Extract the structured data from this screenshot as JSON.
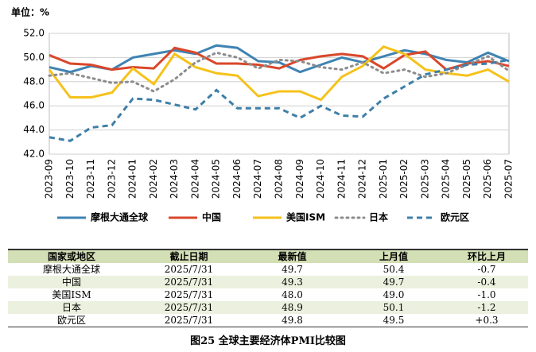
{
  "chart_data": {
    "type": "line",
    "unit_label": "单位：%",
    "categories": [
      "2023-09",
      "2023-10",
      "2023-11",
      "2023-12",
      "2024-01",
      "2024-02",
      "2024-03",
      "2024-04",
      "2024-05",
      "2024-06",
      "2024-07",
      "2024-08",
      "2024-09",
      "2024-10",
      "2024-11",
      "2024-12",
      "2025-01",
      "2025-02",
      "2025-03",
      "2025-04",
      "2025-05",
      "2025-06",
      "2025-07"
    ],
    "series": [
      {
        "name": "摩根大通全球",
        "color": "#3f83b3",
        "line_style": "solid",
        "values": [
          49.2,
          48.8,
          49.3,
          49.0,
          50.0,
          50.3,
          50.6,
          50.3,
          51.0,
          50.8,
          49.7,
          49.6,
          48.8,
          49.4,
          50.0,
          49.6,
          50.1,
          50.6,
          50.3,
          49.8,
          49.6,
          50.4,
          49.7
        ]
      },
      {
        "name": "中国",
        "color": "#d9472b",
        "line_style": "solid",
        "values": [
          50.2,
          49.5,
          49.4,
          49.0,
          49.2,
          49.1,
          50.8,
          50.4,
          49.5,
          49.5,
          49.4,
          49.1,
          49.8,
          50.1,
          50.3,
          50.1,
          49.1,
          50.2,
          50.5,
          49.0,
          49.5,
          49.7,
          49.3
        ]
      },
      {
        "name": "美国ISM",
        "color": "#f5c21b",
        "line_style": "solid",
        "values": [
          49.0,
          46.7,
          46.7,
          47.1,
          49.1,
          47.8,
          50.3,
          49.2,
          48.7,
          48.5,
          46.8,
          47.2,
          47.2,
          46.5,
          48.4,
          49.3,
          50.9,
          50.3,
          49.0,
          48.7,
          48.5,
          49.0,
          48.0
        ]
      },
      {
        "name": "日本",
        "color": "#8c8c8c",
        "line_style": "dot",
        "values": [
          48.5,
          48.7,
          48.3,
          47.9,
          48.0,
          47.2,
          48.2,
          49.6,
          50.4,
          50.0,
          49.1,
          49.8,
          49.7,
          49.2,
          49.0,
          49.6,
          48.7,
          49.0,
          48.4,
          48.7,
          49.4,
          50.1,
          48.9
        ]
      },
      {
        "name": "欧元区",
        "color": "#3e7fa8",
        "line_style": "dash",
        "values": [
          43.4,
          43.1,
          44.2,
          44.4,
          46.6,
          46.5,
          46.1,
          45.7,
          47.3,
          45.8,
          45.8,
          45.8,
          45.0,
          46.0,
          45.2,
          45.1,
          46.6,
          47.6,
          48.6,
          49.0,
          49.4,
          49.5,
          49.8
        ]
      }
    ],
    "ylim": [
      42,
      52
    ],
    "yticks": [
      {
        "value": 42,
        "label": "42.0"
      },
      {
        "value": 44,
        "label": "44.0"
      },
      {
        "value": 46,
        "label": "46.0"
      },
      {
        "value": 48,
        "label": "48.0"
      },
      {
        "value": 50,
        "label": "50.0"
      },
      {
        "value": 52,
        "label": "52.0"
      }
    ],
    "grid": true,
    "legend": "bottom"
  },
  "table": {
    "header": [
      "国家或地区",
      "截止日期",
      "最新值",
      "上月值",
      "环比上月"
    ],
    "rows": [
      [
        "摩根大通全球",
        "2025/7/31",
        "49.7",
        "50.4",
        "-0.7"
      ],
      [
        "中国",
        "2025/7/31",
        "49.3",
        "49.7",
        "-0.4"
      ],
      [
        "美国ISM",
        "2025/7/31",
        "48.0",
        "49.0",
        "-1.0"
      ],
      [
        "日本",
        "2025/7/31",
        "48.9",
        "50.1",
        "-1.2"
      ],
      [
        "欧元区",
        "2025/7/31",
        "49.8",
        "49.5",
        "+0.3"
      ]
    ]
  },
  "caption": "图25  全球主要经济体PMI比较图"
}
